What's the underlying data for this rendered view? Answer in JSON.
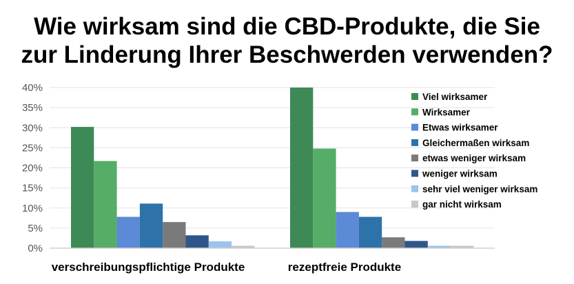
{
  "chart_data": {
    "type": "bar",
    "title_line1": "Wie wirksam sind die CBD-Produkte, die Sie",
    "title_line2": "zur Linderung Ihrer Beschwerden verwenden?",
    "xlabel": "",
    "ylabel": "",
    "ylim": [
      0,
      40
    ],
    "yticks": [
      "0%",
      "5%",
      "10%",
      "15%",
      "20%",
      "25%",
      "30%",
      "35%",
      "40%"
    ],
    "ytick_values": [
      0,
      5,
      10,
      15,
      20,
      25,
      30,
      35,
      40
    ],
    "grid": true,
    "legend_position": "right",
    "categories": [
      "verschreibungspflichtige Produkte",
      "rezeptfreie Produkte"
    ],
    "series": [
      {
        "name": "Viel wirksamer",
        "color": "#3d8a56",
        "values": [
          30.2,
          40
        ]
      },
      {
        "name": "Wirksamer",
        "color": "#56ad68",
        "values": [
          21.7,
          24.8
        ]
      },
      {
        "name": "Etwas wirksamer",
        "color": "#5b8ad6",
        "values": [
          7.8,
          9
        ]
      },
      {
        "name": "Gleichermaßen wirksam",
        "color": "#2e72aa",
        "values": [
          11.1,
          7.8
        ]
      },
      {
        "name": "etwas weniger wirksam",
        "color": "#7a7a7a",
        "values": [
          6.5,
          2.7
        ]
      },
      {
        "name": "weniger wirksam",
        "color": "#2f5689",
        "values": [
          3.2,
          1.8
        ]
      },
      {
        "name": "sehr viel weniger wirksam",
        "color": "#9cc4ea",
        "values": [
          1.7,
          0.6
        ]
      },
      {
        "name": "gar nicht wirksam",
        "color": "#c8c8c8",
        "values": [
          0.6,
          0.6
        ]
      }
    ]
  }
}
